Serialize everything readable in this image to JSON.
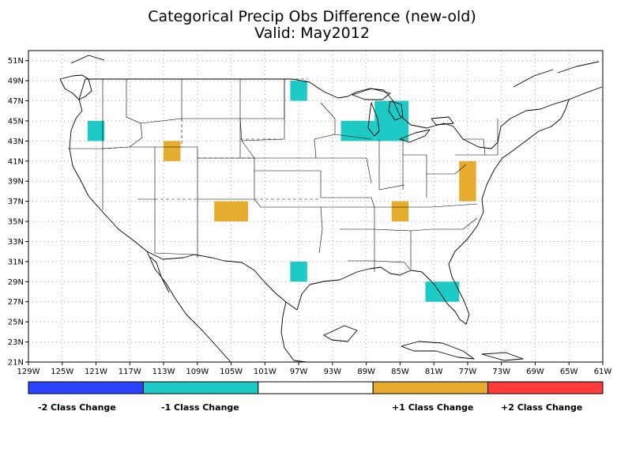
{
  "title": {
    "line1": "Categorical Precip Obs Difference (new-old)",
    "line2": "Valid: May2012"
  },
  "axes": {
    "x_ticks": [
      "129W",
      "125W",
      "121W",
      "117W",
      "113W",
      "109W",
      "105W",
      "101W",
      "97W",
      "93W",
      "89W",
      "85W",
      "81W",
      "77W",
      "73W",
      "69W",
      "65W",
      "61W"
    ],
    "x_values": [
      -129,
      -125,
      -121,
      -117,
      -113,
      -109,
      -105,
      -101,
      -97,
      -93,
      -89,
      -85,
      -81,
      -77,
      -73,
      -69,
      -65,
      -61
    ],
    "y_ticks": [
      "21N",
      "23N",
      "25N",
      "27N",
      "29N",
      "31N",
      "33N",
      "35N",
      "37N",
      "39N",
      "41N",
      "43N",
      "45N",
      "47N",
      "49N",
      "51N"
    ],
    "y_values": [
      21,
      23,
      25,
      27,
      29,
      31,
      33,
      35,
      37,
      39,
      41,
      43,
      45,
      47,
      49,
      51
    ],
    "lon_range": [
      -129,
      -61
    ],
    "lat_range": [
      21,
      52
    ],
    "grid": true
  },
  "legend": {
    "classes": [
      {
        "label": "-2 Class Change",
        "color": "#2b44ff"
      },
      {
        "label": "-1 Class Change",
        "color": "#1ecac6"
      },
      {
        "label": "",
        "color": "#ffffff"
      },
      {
        "label": "+1 Class Change",
        "color": "#e6ac2e"
      },
      {
        "label": "+2 Class Change",
        "color": "#ff3b3b"
      }
    ]
  },
  "chart_data": {
    "type": "heatmap",
    "cells": [
      {
        "lon_min": -122,
        "lon_max": -120,
        "lat_min": 43,
        "lat_max": 45,
        "class": -1
      },
      {
        "lon_min": -113,
        "lon_max": -111,
        "lat_min": 41,
        "lat_max": 43,
        "class": 1
      },
      {
        "lon_min": -107,
        "lon_max": -103,
        "lat_min": 35,
        "lat_max": 37,
        "class": 1
      },
      {
        "lon_min": -98,
        "lon_max": -96,
        "lat_min": 47,
        "lat_max": 49,
        "class": -1
      },
      {
        "lon_min": -98,
        "lon_max": -96,
        "lat_min": 29,
        "lat_max": 31,
        "class": -1
      },
      {
        "lon_min": -92,
        "lon_max": -88,
        "lat_min": 43,
        "lat_max": 45,
        "class": -1
      },
      {
        "lon_min": -88,
        "lon_max": -84,
        "lat_min": 43,
        "lat_max": 47,
        "class": -1
      },
      {
        "lon_min": -86,
        "lon_max": -84,
        "lat_min": 35,
        "lat_max": 37,
        "class": 1
      },
      {
        "lon_min": -82,
        "lon_max": -78,
        "lat_min": 27,
        "lat_max": 29,
        "class": -1
      },
      {
        "lon_min": -78,
        "lon_max": -76,
        "lat_min": 37,
        "lat_max": 41,
        "class": 1
      }
    ]
  }
}
